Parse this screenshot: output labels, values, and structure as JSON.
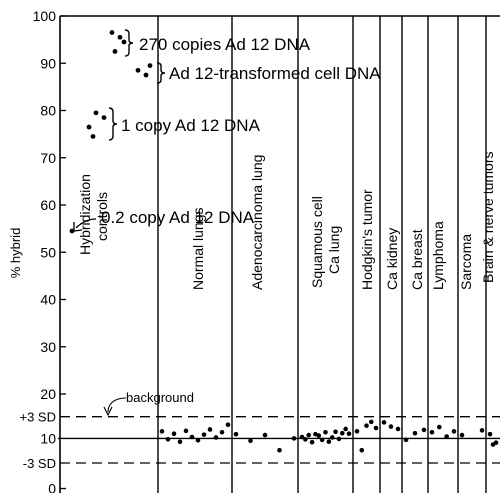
{
  "chart_data": {
    "type": "scatter",
    "title": "",
    "xlabel": "",
    "ylabel": "% hybrid",
    "ylim": [
      0,
      100
    ],
    "y_ticks": [
      "0",
      "10",
      "20",
      "30",
      "40",
      "50",
      "60",
      "70",
      "80",
      "90",
      "100"
    ],
    "special_ticks": [
      {
        "label": "+3 SD",
        "value": 15.2
      },
      {
        "label": "-3 SD",
        "value": 5.4
      }
    ],
    "background_label": "background",
    "background_mean": 10.6,
    "background_upper": 15.2,
    "background_lower": 5.4,
    "groups": [
      {
        "label": "Hybridization controls"
      },
      {
        "label": "Normal lungs"
      },
      {
        "label": "Adenocarcinoma lung"
      },
      {
        "label": "Squamous cell Ca lung"
      },
      {
        "label": "Hodgkin's tumor"
      },
      {
        "label": "Ca kidney"
      },
      {
        "label": "Ca breast"
      },
      {
        "label": "Lymphoma"
      },
      {
        "label": "Sarcoma"
      },
      {
        "label": "Brain & nerve tumors"
      }
    ],
    "control_annotations": [
      {
        "label": "270 copies Ad 12 DNA",
        "values": [
          96.5,
          95.5,
          94.5,
          92.5
        ]
      },
      {
        "label": "Ad 12-transformed cell DNA",
        "values": [
          88.5,
          87.5,
          89.5
        ]
      },
      {
        "label": "1 copy Ad 12 DNA",
        "values": [
          79.5,
          78.5,
          76.5,
          74.5
        ]
      },
      {
        "label": "0.2 copy Ad 12 DNA",
        "values": [
          54.5
        ]
      }
    ],
    "group_values": [
      [],
      [
        12.1,
        10.4,
        11.6,
        9.9,
        12.2,
        10.9,
        10.2,
        11.4,
        12.5,
        10.8,
        11.9,
        13.5
      ],
      [
        11.5,
        10.1,
        11.3,
        8.1,
        10.6
      ],
      [
        10.9,
        10.4,
        11.3,
        9.8,
        11.5,
        11.2,
        10.3,
        11.9,
        9.9,
        10.8,
        12.0,
        10.5,
        11.7,
        12.6,
        11.6
      ],
      [
        12.1,
        8.1,
        13.3,
        14.1,
        12.8
      ],
      [
        14.0,
        13.1,
        12.6
      ],
      [
        10.3,
        11.7,
        12.4
      ],
      [
        11.9,
        13.0,
        11.0,
        12.1
      ],
      [
        11.3,
        12.3
      ],
      [
        11.5,
        9.3,
        9.7
      ]
    ]
  }
}
